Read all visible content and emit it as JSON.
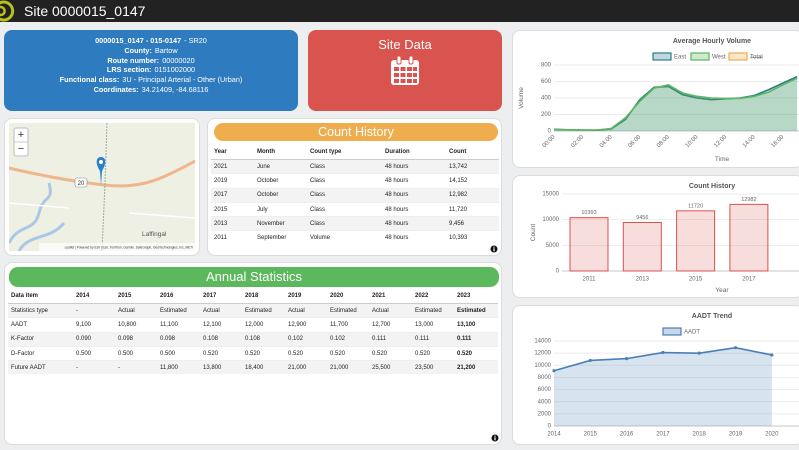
{
  "header": {
    "title": "Site 0000015_0147"
  },
  "site_info": {
    "heading": "0000015_0147 - 015-0147",
    "heading_suffix": "- SR20",
    "fields": [
      {
        "label": "County:",
        "value": "Bartow"
      },
      {
        "label": "Route number:",
        "value": "00000020"
      },
      {
        "label": "LRS section:",
        "value": "0151002000"
      },
      {
        "label": "Functional class:",
        "value": "3U - Principal Arterial - Other (Urban)"
      },
      {
        "label": "Coordinates:",
        "value": "34.21409, -84.68116"
      }
    ]
  },
  "site_data_button": {
    "label": "Site Data"
  },
  "map": {
    "place_label": "Laffingal",
    "road_shield": "20",
    "zoom_in": "+",
    "zoom_out": "−",
    "attribution": "Leaflet | Powered by Esri | Esri, TomTom, Garmin, SafeGraph, GeoTechnologies, Inc, METI"
  },
  "count_history_table": {
    "title": "Count History",
    "columns": [
      "Year",
      "Month",
      "Count type",
      "Duration",
      "Count"
    ],
    "rows": [
      [
        "2021",
        "June",
        "Class",
        "48 hours",
        "13,742"
      ],
      [
        "2019",
        "October",
        "Class",
        "48 hours",
        "14,152"
      ],
      [
        "2017",
        "October",
        "Class",
        "48 hours",
        "12,982"
      ],
      [
        "2015",
        "July",
        "Class",
        "48 hours",
        "11,720"
      ],
      [
        "2013",
        "November",
        "Class",
        "48 hours",
        "9,456"
      ],
      [
        "2011",
        "September",
        "Volume",
        "48 hours",
        "10,393"
      ]
    ]
  },
  "annual_statistics": {
    "title": "Annual Statistics",
    "columns": [
      "Data item",
      "2014",
      "2015",
      "2016",
      "2017",
      "2018",
      "2019",
      "2020",
      "2021",
      "2022",
      "2023"
    ],
    "rows": [
      [
        "Statistics type",
        "-",
        "Actual",
        "Estimated",
        "Actual",
        "Estimated",
        "Actual",
        "Estimated",
        "Actual",
        "Estimated",
        "Estimated"
      ],
      [
        "AADT",
        "9,100",
        "10,800",
        "11,100",
        "12,100",
        "12,000",
        "12,900",
        "11,700",
        "12,700",
        "13,000",
        "13,100"
      ],
      [
        "K-Factor",
        "0.090",
        "0.098",
        "0.098",
        "0.108",
        "0.108",
        "0.102",
        "0.102",
        "0.111",
        "0.111",
        "0.111"
      ],
      [
        "D-Factor",
        "0.500",
        "0.500",
        "0.500",
        "0.520",
        "0.520",
        "0.520",
        "0.520",
        "0.520",
        "0.520",
        "0.520"
      ],
      [
        "Future AADT",
        "-",
        "-",
        "11,800",
        "13,800",
        "18,400",
        "21,000",
        "21,000",
        "25,500",
        "23,500",
        "21,200"
      ]
    ]
  },
  "hourly_chart": {
    "type": "line",
    "title": "Average Hourly Volume",
    "x_label": "Time",
    "y_label": "Volume",
    "area": true,
    "categories": [
      "00:00",
      null,
      "02:00",
      null,
      "04:00",
      null,
      "06:00",
      null,
      "08:00",
      null,
      "10:00",
      null,
      "12:00",
      null,
      "14:00",
      null,
      "16:00",
      null
    ],
    "ylim": [
      0,
      800
    ],
    "yticks": [
      0,
      200,
      400,
      600,
      800
    ],
    "grid": true,
    "series": [
      {
        "name": "East",
        "color": "#2e7d8c",
        "values": [
          20,
          15,
          12,
          10,
          25,
          140,
          380,
          530,
          540,
          440,
          400,
          380,
          390,
          400,
          430,
          500,
          580,
          660
        ]
      },
      {
        "name": "West",
        "color": "#5cb85c",
        "values": [
          18,
          14,
          10,
          12,
          30,
          160,
          360,
          520,
          560,
          460,
          420,
          400,
          395,
          395,
          420,
          470,
          560,
          640
        ]
      }
    ],
    "hidden_series": [
      {
        "name": "Total",
        "color": "#f0ad4e"
      }
    ]
  },
  "count_chart": {
    "type": "bar",
    "title": "Count History",
    "x_label": "Year",
    "y_label": "Count",
    "categories": [
      2011,
      2013,
      2015,
      2017
    ],
    "values": [
      10393,
      9456,
      11720,
      12982
    ],
    "color": "#d9534f",
    "ylim": [
      0,
      15000
    ],
    "yticks": [
      0,
      5000,
      10000,
      15000
    ],
    "grid": true
  },
  "aadt_chart": {
    "type": "line",
    "title": "AADT Trend",
    "area": true,
    "categories": [
      2014,
      2015,
      2016,
      2017,
      2018,
      2019,
      2020
    ],
    "ylim": [
      0,
      14000
    ],
    "yticks": [
      0,
      2000,
      4000,
      6000,
      8000,
      10000,
      12000,
      14000
    ],
    "grid": true,
    "series": [
      {
        "name": "AADT",
        "color": "#4a7fb5",
        "values": [
          9100,
          10800,
          11100,
          12100,
          12000,
          12900,
          11700
        ]
      }
    ]
  }
}
